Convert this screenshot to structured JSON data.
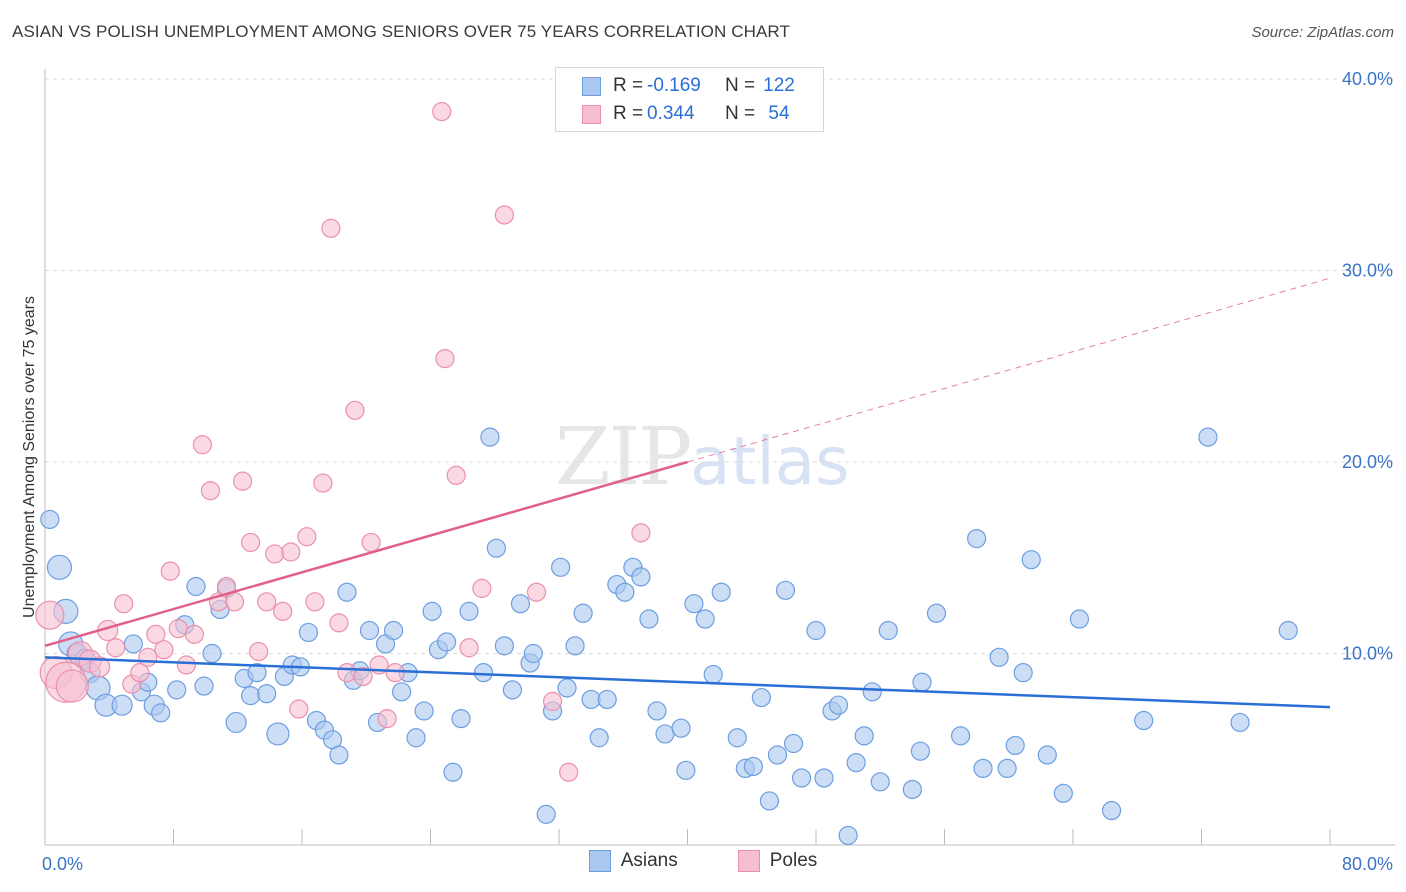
{
  "title": "ASIAN VS POLISH UNEMPLOYMENT AMONG SENIORS OVER 75 YEARS CORRELATION CHART",
  "source": "Source: ZipAtlas.com",
  "watermark": {
    "zip": "ZIP",
    "atlas": "atlas"
  },
  "legend_top": {
    "rows": [
      {
        "r_label": "R =",
        "r_value": "-0.169",
        "n_label": "N =",
        "n_value": "122"
      },
      {
        "r_label": "R =",
        "r_value": "0.344",
        "n_label": "N =",
        "n_value": "54"
      }
    ]
  },
  "legend_bottom": [
    "Asians",
    "Poles"
  ],
  "colors": {
    "asian_fill": "#aac8f0",
    "asian_stroke": "#6d9ee0",
    "asian_line": "#2a6fd6",
    "poles_fill": "#f6bfd0",
    "poles_stroke": "#ec8fab",
    "poles_line": "#e0608b",
    "axis_text": "#3b73c9",
    "grid": "#dcdcdc"
  },
  "chart_data": {
    "type": "scatter",
    "title": "ASIAN VS POLISH UNEMPLOYMENT AMONG SENIORS OVER 75 YEARS CORRELATION CHART",
    "xlabel": "",
    "ylabel": "Unemployment Among Seniors over 75 years",
    "xlim": [
      0,
      80
    ],
    "ylim": [
      0,
      40
    ],
    "x_tick_labels": [
      "0.0%",
      "80.0%"
    ],
    "y_ticks": [
      10,
      20,
      30,
      40
    ],
    "y_tick_labels": [
      "10.0%",
      "20.0%",
      "30.0%",
      "40.0%"
    ],
    "grid": true,
    "series": [
      {
        "name": "Asians",
        "r": -0.169,
        "n": 122,
        "trend": {
          "x0": 0,
          "y0": 9.8,
          "x1": 80,
          "y1": 7.2
        },
        "points": [
          {
            "x": 0.3,
            "y": 17.0,
            "s": 9
          },
          {
            "x": 0.9,
            "y": 14.5,
            "s": 12
          },
          {
            "x": 1.3,
            "y": 12.2,
            "s": 12
          },
          {
            "x": 1.6,
            "y": 10.5,
            "s": 12
          },
          {
            "x": 2.0,
            "y": 10.0,
            "s": 10
          },
          {
            "x": 2.5,
            "y": 9.7,
            "s": 10
          },
          {
            "x": 2.8,
            "y": 9.0,
            "s": 10
          },
          {
            "x": 3.3,
            "y": 8.2,
            "s": 12
          },
          {
            "x": 3.8,
            "y": 7.3,
            "s": 11
          },
          {
            "x": 4.8,
            "y": 7.3,
            "s": 10
          },
          {
            "x": 5.5,
            "y": 10.5,
            "s": 9
          },
          {
            "x": 6.0,
            "y": 8.0,
            "s": 9
          },
          {
            "x": 6.4,
            "y": 8.5,
            "s": 9
          },
          {
            "x": 6.8,
            "y": 7.3,
            "s": 10
          },
          {
            "x": 7.2,
            "y": 6.9,
            "s": 9
          },
          {
            "x": 8.2,
            "y": 8.1,
            "s": 9
          },
          {
            "x": 8.7,
            "y": 11.5,
            "s": 9
          },
          {
            "x": 9.4,
            "y": 13.5,
            "s": 9
          },
          {
            "x": 9.9,
            "y": 8.3,
            "s": 9
          },
          {
            "x": 10.4,
            "y": 10.0,
            "s": 9
          },
          {
            "x": 10.9,
            "y": 12.3,
            "s": 9
          },
          {
            "x": 11.3,
            "y": 13.4,
            "s": 9
          },
          {
            "x": 11.9,
            "y": 6.4,
            "s": 10
          },
          {
            "x": 12.4,
            "y": 8.7,
            "s": 9
          },
          {
            "x": 12.8,
            "y": 7.8,
            "s": 9
          },
          {
            "x": 13.2,
            "y": 9.0,
            "s": 9
          },
          {
            "x": 13.8,
            "y": 7.9,
            "s": 9
          },
          {
            "x": 14.5,
            "y": 5.8,
            "s": 11
          },
          {
            "x": 14.9,
            "y": 8.8,
            "s": 9
          },
          {
            "x": 15.4,
            "y": 9.4,
            "s": 9
          },
          {
            "x": 15.9,
            "y": 9.3,
            "s": 9
          },
          {
            "x": 16.4,
            "y": 11.1,
            "s": 9
          },
          {
            "x": 16.9,
            "y": 6.5,
            "s": 9
          },
          {
            "x": 17.4,
            "y": 6.0,
            "s": 9
          },
          {
            "x": 17.9,
            "y": 5.5,
            "s": 9
          },
          {
            "x": 18.3,
            "y": 4.7,
            "s": 9
          },
          {
            "x": 18.8,
            "y": 13.2,
            "s": 9
          },
          {
            "x": 19.2,
            "y": 8.6,
            "s": 9
          },
          {
            "x": 19.6,
            "y": 9.1,
            "s": 9
          },
          {
            "x": 20.2,
            "y": 11.2,
            "s": 9
          },
          {
            "x": 20.7,
            "y": 6.4,
            "s": 9
          },
          {
            "x": 21.2,
            "y": 10.5,
            "s": 9
          },
          {
            "x": 21.7,
            "y": 11.2,
            "s": 9
          },
          {
            "x": 22.2,
            "y": 8.0,
            "s": 9
          },
          {
            "x": 22.6,
            "y": 9.0,
            "s": 9
          },
          {
            "x": 23.1,
            "y": 5.6,
            "s": 9
          },
          {
            "x": 23.6,
            "y": 7.0,
            "s": 9
          },
          {
            "x": 24.1,
            "y": 12.2,
            "s": 9
          },
          {
            "x": 24.5,
            "y": 10.2,
            "s": 9
          },
          {
            "x": 25.0,
            "y": 10.6,
            "s": 9
          },
          {
            "x": 25.4,
            "y": 3.8,
            "s": 9
          },
          {
            "x": 25.9,
            "y": 6.6,
            "s": 9
          },
          {
            "x": 26.4,
            "y": 12.2,
            "s": 9
          },
          {
            "x": 27.3,
            "y": 9.0,
            "s": 9
          },
          {
            "x": 27.7,
            "y": 21.3,
            "s": 9
          },
          {
            "x": 28.1,
            "y": 15.5,
            "s": 9
          },
          {
            "x": 28.6,
            "y": 10.4,
            "s": 9
          },
          {
            "x": 29.1,
            "y": 8.1,
            "s": 9
          },
          {
            "x": 29.6,
            "y": 12.6,
            "s": 9
          },
          {
            "x": 30.2,
            "y": 9.5,
            "s": 9
          },
          {
            "x": 30.4,
            "y": 10.0,
            "s": 9
          },
          {
            "x": 31.2,
            "y": 1.6,
            "s": 9
          },
          {
            "x": 31.6,
            "y": 7.0,
            "s": 9
          },
          {
            "x": 32.1,
            "y": 14.5,
            "s": 9
          },
          {
            "x": 32.5,
            "y": 8.2,
            "s": 9
          },
          {
            "x": 33.0,
            "y": 10.4,
            "s": 9
          },
          {
            "x": 33.5,
            "y": 12.1,
            "s": 9
          },
          {
            "x": 34.0,
            "y": 7.6,
            "s": 9
          },
          {
            "x": 34.5,
            "y": 5.6,
            "s": 9
          },
          {
            "x": 35.0,
            "y": 7.6,
            "s": 9
          },
          {
            "x": 35.6,
            "y": 13.6,
            "s": 9
          },
          {
            "x": 36.1,
            "y": 13.2,
            "s": 9
          },
          {
            "x": 36.6,
            "y": 14.5,
            "s": 9
          },
          {
            "x": 37.1,
            "y": 14.0,
            "s": 9
          },
          {
            "x": 37.6,
            "y": 11.8,
            "s": 9
          },
          {
            "x": 38.1,
            "y": 7.0,
            "s": 9
          },
          {
            "x": 38.6,
            "y": 5.8,
            "s": 9
          },
          {
            "x": 39.6,
            "y": 6.1,
            "s": 9
          },
          {
            "x": 39.9,
            "y": 3.9,
            "s": 9
          },
          {
            "x": 40.4,
            "y": 12.6,
            "s": 9
          },
          {
            "x": 41.1,
            "y": 11.8,
            "s": 9
          },
          {
            "x": 41.6,
            "y": 8.9,
            "s": 9
          },
          {
            "x": 42.1,
            "y": 13.2,
            "s": 9
          },
          {
            "x": 43.1,
            "y": 5.6,
            "s": 9
          },
          {
            "x": 43.6,
            "y": 4.0,
            "s": 9
          },
          {
            "x": 44.1,
            "y": 4.1,
            "s": 9
          },
          {
            "x": 44.6,
            "y": 7.7,
            "s": 9
          },
          {
            "x": 45.1,
            "y": 2.3,
            "s": 9
          },
          {
            "x": 45.6,
            "y": 4.7,
            "s": 9
          },
          {
            "x": 46.1,
            "y": 13.3,
            "s": 9
          },
          {
            "x": 46.6,
            "y": 5.3,
            "s": 9
          },
          {
            "x": 47.1,
            "y": 3.5,
            "s": 9
          },
          {
            "x": 48.0,
            "y": 11.2,
            "s": 9
          },
          {
            "x": 48.5,
            "y": 3.5,
            "s": 9
          },
          {
            "x": 49.0,
            "y": 7.0,
            "s": 9
          },
          {
            "x": 49.4,
            "y": 7.3,
            "s": 9
          },
          {
            "x": 50.0,
            "y": 0.5,
            "s": 9
          },
          {
            "x": 50.5,
            "y": 4.3,
            "s": 9
          },
          {
            "x": 51.0,
            "y": 5.7,
            "s": 9
          },
          {
            "x": 51.5,
            "y": 8.0,
            "s": 9
          },
          {
            "x": 52.0,
            "y": 3.3,
            "s": 9
          },
          {
            "x": 52.5,
            "y": 11.2,
            "s": 9
          },
          {
            "x": 54.0,
            "y": 2.9,
            "s": 9
          },
          {
            "x": 54.5,
            "y": 4.9,
            "s": 9
          },
          {
            "x": 55.5,
            "y": 12.1,
            "s": 9
          },
          {
            "x": 57.0,
            "y": 5.7,
            "s": 9
          },
          {
            "x": 58.0,
            "y": 16.0,
            "s": 9
          },
          {
            "x": 59.4,
            "y": 9.8,
            "s": 9
          },
          {
            "x": 59.9,
            "y": 4.0,
            "s": 9
          },
          {
            "x": 60.4,
            "y": 5.2,
            "s": 9
          },
          {
            "x": 60.9,
            "y": 9.0,
            "s": 9
          },
          {
            "x": 61.4,
            "y": 14.9,
            "s": 9
          },
          {
            "x": 62.4,
            "y": 4.7,
            "s": 9
          },
          {
            "x": 63.4,
            "y": 2.7,
            "s": 9
          },
          {
            "x": 64.4,
            "y": 11.8,
            "s": 9
          },
          {
            "x": 66.4,
            "y": 1.8,
            "s": 9
          },
          {
            "x": 68.4,
            "y": 6.5,
            "s": 9
          },
          {
            "x": 72.4,
            "y": 21.3,
            "s": 9
          },
          {
            "x": 74.4,
            "y": 6.4,
            "s": 9
          },
          {
            "x": 77.4,
            "y": 11.2,
            "s": 9
          },
          {
            "x": 54.6,
            "y": 8.5,
            "s": 9
          },
          {
            "x": 58.4,
            "y": 4.0,
            "s": 9
          }
        ]
      },
      {
        "name": "Poles",
        "r": 0.344,
        "n": 54,
        "trend": {
          "x0": 0,
          "y0": 10.4,
          "x1": 40,
          "y1": 20.0,
          "dashed_x1": 80,
          "dashed_y1": 29.6
        },
        "points": [
          {
            "x": 0.3,
            "y": 12.0,
            "s": 14
          },
          {
            "x": 0.7,
            "y": 9.0,
            "s": 16
          },
          {
            "x": 1.3,
            "y": 8.5,
            "s": 20
          },
          {
            "x": 1.7,
            "y": 8.3,
            "s": 16
          },
          {
            "x": 2.2,
            "y": 10.0,
            "s": 12
          },
          {
            "x": 2.8,
            "y": 9.6,
            "s": 11
          },
          {
            "x": 3.4,
            "y": 9.3,
            "s": 10
          },
          {
            "x": 3.9,
            "y": 11.2,
            "s": 10
          },
          {
            "x": 4.4,
            "y": 10.3,
            "s": 9
          },
          {
            "x": 4.9,
            "y": 12.6,
            "s": 9
          },
          {
            "x": 5.4,
            "y": 8.4,
            "s": 9
          },
          {
            "x": 5.9,
            "y": 9.0,
            "s": 9
          },
          {
            "x": 6.4,
            "y": 9.8,
            "s": 9
          },
          {
            "x": 6.9,
            "y": 11.0,
            "s": 9
          },
          {
            "x": 7.4,
            "y": 10.2,
            "s": 9
          },
          {
            "x": 7.8,
            "y": 14.3,
            "s": 9
          },
          {
            "x": 8.3,
            "y": 11.3,
            "s": 9
          },
          {
            "x": 8.8,
            "y": 9.4,
            "s": 9
          },
          {
            "x": 9.3,
            "y": 11.0,
            "s": 9
          },
          {
            "x": 9.8,
            "y": 20.9,
            "s": 9
          },
          {
            "x": 10.3,
            "y": 18.5,
            "s": 9
          },
          {
            "x": 10.8,
            "y": 12.7,
            "s": 9
          },
          {
            "x": 11.3,
            "y": 13.5,
            "s": 9
          },
          {
            "x": 11.8,
            "y": 12.7,
            "s": 9
          },
          {
            "x": 12.3,
            "y": 19.0,
            "s": 9
          },
          {
            "x": 12.8,
            "y": 15.8,
            "s": 9
          },
          {
            "x": 13.3,
            "y": 10.1,
            "s": 9
          },
          {
            "x": 13.8,
            "y": 12.7,
            "s": 9
          },
          {
            "x": 14.3,
            "y": 15.2,
            "s": 9
          },
          {
            "x": 14.8,
            "y": 12.2,
            "s": 9
          },
          {
            "x": 15.3,
            "y": 15.3,
            "s": 9
          },
          {
            "x": 15.8,
            "y": 7.1,
            "s": 9
          },
          {
            "x": 16.3,
            "y": 16.1,
            "s": 9
          },
          {
            "x": 16.8,
            "y": 12.7,
            "s": 9
          },
          {
            "x": 17.3,
            "y": 18.9,
            "s": 9
          },
          {
            "x": 17.8,
            "y": 32.2,
            "s": 9
          },
          {
            "x": 18.3,
            "y": 11.6,
            "s": 9
          },
          {
            "x": 18.8,
            "y": 9.0,
            "s": 9
          },
          {
            "x": 19.3,
            "y": 22.7,
            "s": 9
          },
          {
            "x": 19.8,
            "y": 8.8,
            "s": 9
          },
          {
            "x": 20.3,
            "y": 15.8,
            "s": 9
          },
          {
            "x": 20.8,
            "y": 9.4,
            "s": 9
          },
          {
            "x": 21.3,
            "y": 6.6,
            "s": 9
          },
          {
            "x": 21.8,
            "y": 9.0,
            "s": 9
          },
          {
            "x": 24.7,
            "y": 38.3,
            "s": 9
          },
          {
            "x": 24.9,
            "y": 25.4,
            "s": 9
          },
          {
            "x": 25.6,
            "y": 19.3,
            "s": 9
          },
          {
            "x": 26.4,
            "y": 10.3,
            "s": 9
          },
          {
            "x": 27.2,
            "y": 13.4,
            "s": 9
          },
          {
            "x": 28.6,
            "y": 32.9,
            "s": 9
          },
          {
            "x": 30.6,
            "y": 13.2,
            "s": 9
          },
          {
            "x": 31.6,
            "y": 7.5,
            "s": 9
          },
          {
            "x": 32.6,
            "y": 3.8,
            "s": 9
          },
          {
            "x": 37.1,
            "y": 16.3,
            "s": 9
          }
        ]
      }
    ]
  }
}
